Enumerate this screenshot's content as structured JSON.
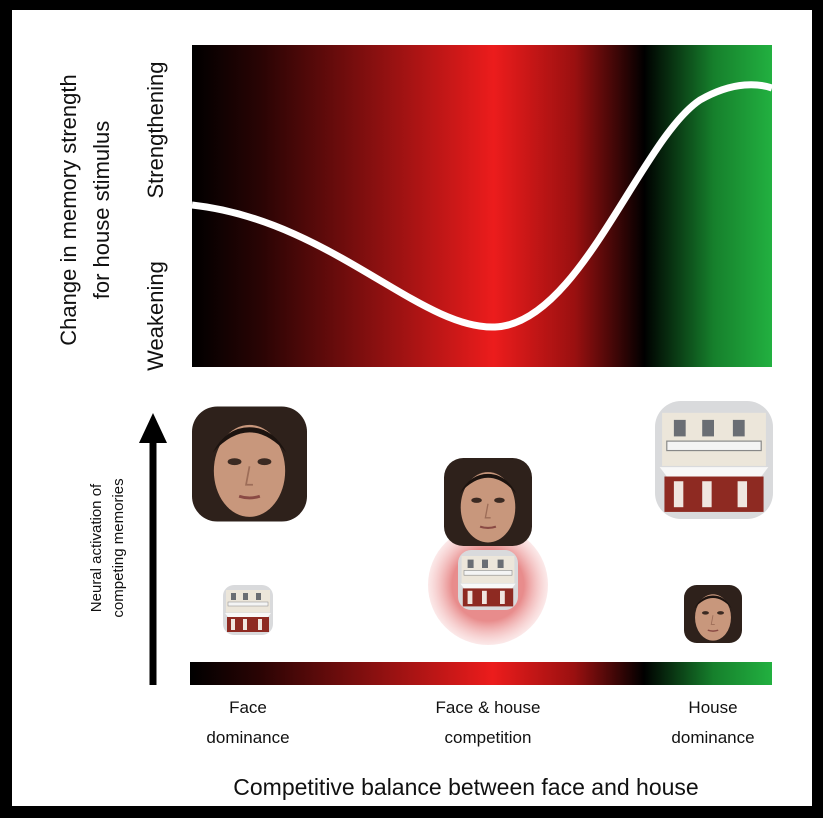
{
  "y_axis": {
    "label_lines": [
      "Change in memory strength",
      "for house stimulus"
    ],
    "low": "Weakening",
    "high": "Strengthening"
  },
  "side_axis": {
    "label_lines": [
      "Neural activation of",
      "competing memories"
    ]
  },
  "x_axis": {
    "groups": [
      {
        "lines": [
          "Face",
          "dominance"
        ]
      },
      {
        "lines": [
          "Face & house",
          "competition"
        ]
      },
      {
        "lines": [
          "House",
          "dominance"
        ]
      }
    ],
    "title": "Competitive balance between face and house"
  }
}
